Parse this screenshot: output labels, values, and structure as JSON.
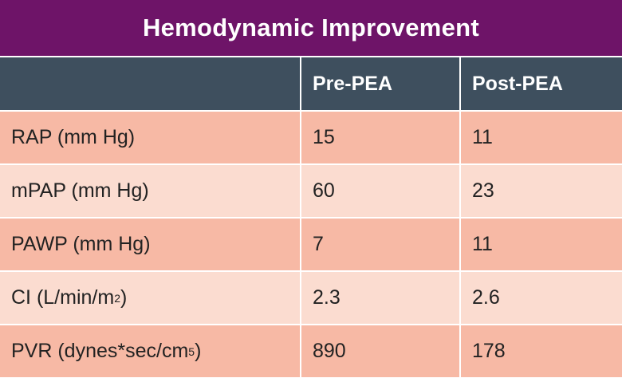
{
  "title": "Hemodynamic Improvement",
  "columns": [
    "",
    "Pre-PEA",
    "Post-PEA"
  ],
  "rows": [
    {
      "label": "RAP (mm Hg)",
      "label_sup": "",
      "label_tail": "",
      "pre": "15",
      "post": "11"
    },
    {
      "label": "mPAP (mm Hg)",
      "label_sup": "",
      "label_tail": "",
      "pre": "60",
      "post": "23"
    },
    {
      "label": "PAWP (mm Hg)",
      "label_sup": "",
      "label_tail": "",
      "pre": "7",
      "post": "11"
    },
    {
      "label": "CI (L/min/m",
      "label_sup": "2",
      "label_tail": ")",
      "pre": "2.3",
      "post": "2.6"
    },
    {
      "label": "PVR (dynes*sec/cm",
      "label_sup": "5",
      "label_tail": ")",
      "pre": "890",
      "post": "178"
    }
  ],
  "colors": {
    "title_bg": "#6e1468",
    "header_bg": "#3e4f5e",
    "row_dark": "#f7b9a5",
    "row_light": "#fbdcd0"
  }
}
